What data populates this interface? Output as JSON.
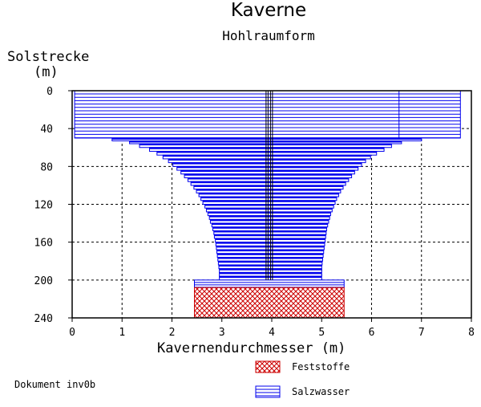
{
  "chart_data": {
    "type": "bar",
    "title": "Kaverne",
    "subtitle": "Hohlraumform",
    "ylabel_line1": "Solstrecke",
    "ylabel_line2": "(m)",
    "xlabel": "Kavernendurchmesser (m)",
    "document_label": "Dokument inv0b",
    "xlim": [
      0,
      8
    ],
    "ylim": [
      0,
      240
    ],
    "x_ticks": [
      "0",
      "1",
      "2",
      "3",
      "4",
      "5",
      "6",
      "7",
      "8"
    ],
    "y_ticks": [
      "0",
      "40",
      "80",
      "120",
      "160",
      "200",
      "240"
    ],
    "grid": true,
    "legend": [
      {
        "name": "Feststoffe",
        "color": "#cc0000"
      },
      {
        "name": "Salzwasser",
        "color": "#0000ee"
      }
    ],
    "center_x": 3.95,
    "upper_segments": [
      {
        "depth_top": 0,
        "depth_bottom": 50,
        "x_left": 0.05,
        "x_right": 7.78,
        "inner_divider_x": 6.55
      }
    ],
    "salzwasser_profile": [
      {
        "depth": 50,
        "x_left": 0.8,
        "x_right": 7.0
      },
      {
        "depth": 53,
        "x_left": 1.15,
        "x_right": 6.6
      },
      {
        "depth": 56,
        "x_left": 1.35,
        "x_right": 6.4
      },
      {
        "depth": 60,
        "x_left": 1.55,
        "x_right": 6.25
      },
      {
        "depth": 64,
        "x_left": 1.7,
        "x_right": 6.1
      },
      {
        "depth": 68,
        "x_left": 1.82,
        "x_right": 5.98
      },
      {
        "depth": 72,
        "x_left": 1.93,
        "x_right": 5.88
      },
      {
        "depth": 76,
        "x_left": 2.02,
        "x_right": 5.8
      },
      {
        "depth": 80,
        "x_left": 2.1,
        "x_right": 5.73
      },
      {
        "depth": 84,
        "x_left": 2.18,
        "x_right": 5.66
      },
      {
        "depth": 88,
        "x_left": 2.25,
        "x_right": 5.6
      },
      {
        "depth": 92,
        "x_left": 2.32,
        "x_right": 5.54
      },
      {
        "depth": 96,
        "x_left": 2.38,
        "x_right": 5.48
      },
      {
        "depth": 100,
        "x_left": 2.44,
        "x_right": 5.43
      },
      {
        "depth": 104,
        "x_left": 2.49,
        "x_right": 5.38
      },
      {
        "depth": 108,
        "x_left": 2.54,
        "x_right": 5.34
      },
      {
        "depth": 112,
        "x_left": 2.58,
        "x_right": 5.3
      },
      {
        "depth": 116,
        "x_left": 2.62,
        "x_right": 5.27
      },
      {
        "depth": 120,
        "x_left": 2.66,
        "x_right": 5.24
      },
      {
        "depth": 124,
        "x_left": 2.69,
        "x_right": 5.21
      },
      {
        "depth": 128,
        "x_left": 2.72,
        "x_right": 5.18
      },
      {
        "depth": 132,
        "x_left": 2.75,
        "x_right": 5.16
      },
      {
        "depth": 136,
        "x_left": 2.77,
        "x_right": 5.14
      },
      {
        "depth": 140,
        "x_left": 2.8,
        "x_right": 5.12
      },
      {
        "depth": 144,
        "x_left": 2.82,
        "x_right": 5.1
      },
      {
        "depth": 148,
        "x_left": 2.84,
        "x_right": 5.09
      },
      {
        "depth": 152,
        "x_left": 2.85,
        "x_right": 5.08
      },
      {
        "depth": 156,
        "x_left": 2.87,
        "x_right": 5.07
      },
      {
        "depth": 160,
        "x_left": 2.88,
        "x_right": 5.06
      },
      {
        "depth": 164,
        "x_left": 2.89,
        "x_right": 5.05
      },
      {
        "depth": 168,
        "x_left": 2.9,
        "x_right": 5.04
      },
      {
        "depth": 172,
        "x_left": 2.91,
        "x_right": 5.03
      },
      {
        "depth": 176,
        "x_left": 2.92,
        "x_right": 5.02
      },
      {
        "depth": 180,
        "x_left": 2.93,
        "x_right": 5.01
      },
      {
        "depth": 184,
        "x_left": 2.94,
        "x_right": 5.0
      },
      {
        "depth": 188,
        "x_left": 2.95,
        "x_right": 5.0
      },
      {
        "depth": 192,
        "x_left": 2.95,
        "x_right": 5.0
      },
      {
        "depth": 196,
        "x_left": 2.95,
        "x_right": 5.0
      },
      {
        "depth": 200,
        "x_left": 2.95,
        "x_right": 5.0
      }
    ],
    "salzwasser_sump": {
      "depth_top": 200,
      "depth_bottom": 208,
      "x_left": 2.45,
      "x_right": 5.45
    },
    "feststoffe": {
      "depth_top": 208,
      "depth_bottom": 240,
      "x_left": 2.45,
      "x_right": 5.45
    }
  }
}
